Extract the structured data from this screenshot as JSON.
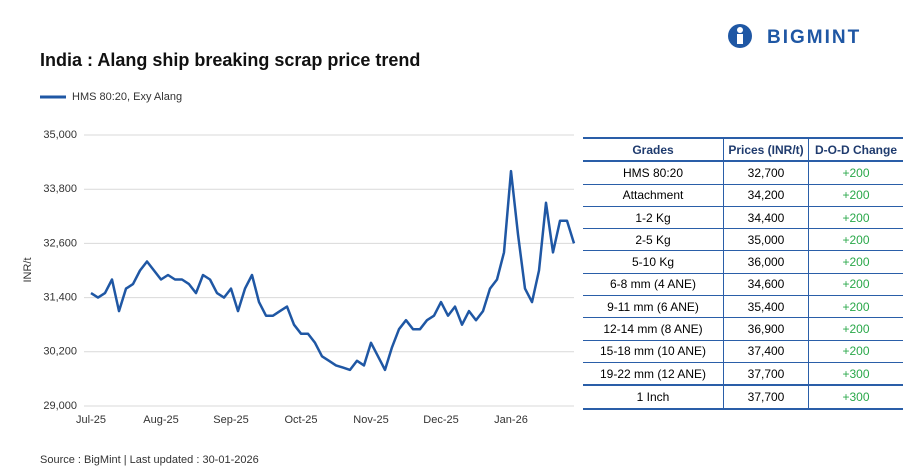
{
  "brand": "BIGMINT",
  "source": "Source : BigMint | Last updated : 30-01-2026",
  "chart_data": {
    "type": "line",
    "title": "India : Alang ship breaking scrap price trend",
    "y_label": "INR/t",
    "categories": [
      "Jul-25",
      null,
      null,
      null,
      null,
      null,
      null,
      null,
      null,
      null,
      "Aug-25",
      null,
      null,
      null,
      null,
      null,
      null,
      null,
      null,
      null,
      "Sep-25",
      null,
      null,
      null,
      null,
      null,
      null,
      null,
      null,
      null,
      "Oct-25",
      null,
      null,
      null,
      null,
      null,
      null,
      null,
      null,
      null,
      "Nov-25",
      null,
      null,
      null,
      null,
      null,
      null,
      null,
      null,
      null,
      "Dec-25",
      null,
      null,
      null,
      null,
      null,
      null,
      null,
      null,
      null,
      "Jan-26",
      null,
      null,
      null,
      null,
      null,
      null,
      null,
      null,
      null
    ],
    "series": [
      {
        "name": "HMS 80:20, Exy Alang",
        "color": "#1f57a4",
        "values": [
          31500,
          31400,
          31500,
          31800,
          31100,
          31600,
          31700,
          32000,
          32200,
          32000,
          31800,
          31900,
          31800,
          31800,
          31700,
          31500,
          31900,
          31800,
          31500,
          31400,
          31600,
          31100,
          31600,
          31900,
          31300,
          31000,
          31000,
          31100,
          31200,
          30800,
          30600,
          30600,
          30400,
          30100,
          30000,
          29900,
          29850,
          29800,
          30000,
          29900,
          30400,
          30100,
          29800,
          30300,
          30700,
          30900,
          30700,
          30700,
          30900,
          31000,
          31300,
          31000,
          31200,
          30800,
          31100,
          30900,
          31100,
          31600,
          31800,
          32400,
          34200,
          32800,
          31600,
          31300,
          32000,
          33500,
          32400,
          33100,
          33100,
          32600
        ]
      }
    ],
    "ylim": [
      29000,
      35000
    ],
    "yticks": [
      {
        "value": 29000,
        "label": "29,000"
      },
      {
        "value": 30200,
        "label": "30,200"
      },
      {
        "value": 31400,
        "label": "31,400"
      },
      {
        "value": 32600,
        "label": "32,600"
      },
      {
        "value": 33800,
        "label": "33,800"
      },
      {
        "value": 35000,
        "label": "35,000"
      }
    ],
    "grid": true
  },
  "table": {
    "header": [
      "Grades",
      "Prices (INR/t)",
      "D-O-D Change"
    ],
    "rows": [
      [
        "HMS 80:20",
        "32,700",
        "+200"
      ],
      [
        "Attachment",
        "34,200",
        "+200"
      ],
      [
        "1-2 Kg",
        "34,400",
        "+200"
      ],
      [
        "2-5 Kg",
        "35,000",
        "+200"
      ],
      [
        "5-10 Kg",
        "36,000",
        "+200"
      ],
      [
        "6-8 mm (4 ANE)",
        "34,600",
        "+200"
      ],
      [
        "9-11 mm (6 ANE)",
        "35,400",
        "+200"
      ],
      [
        "12-14 mm (8 ANE)",
        "36,900",
        "+200"
      ],
      [
        "15-18 mm (10 ANE)",
        "37,400",
        "+200"
      ],
      [
        "19-22 mm (12 ANE)",
        "37,700",
        "+300"
      ],
      [
        "1 Inch",
        "37,700",
        "+300"
      ]
    ]
  }
}
